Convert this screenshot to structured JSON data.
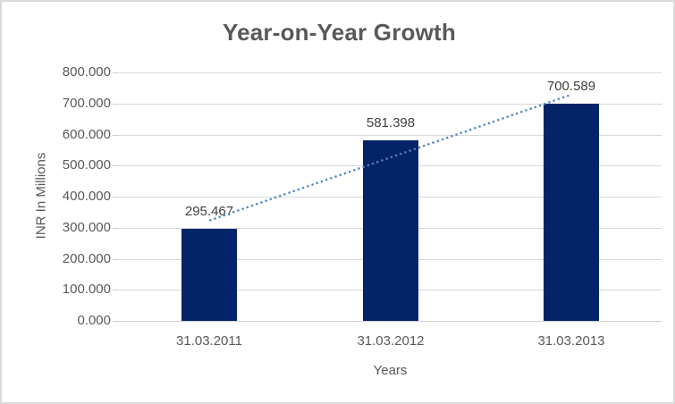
{
  "window": {
    "background": "#ffffff",
    "border_color": "#dadada"
  },
  "chart_data": {
    "type": "bar",
    "title": "Year-on-Year Growth",
    "xlabel": "Years",
    "ylabel": "INR In Millions",
    "categories": [
      "31.03.2011",
      "31.03.2012",
      "31.03.2013"
    ],
    "values": [
      295.467,
      581.398,
      700.589
    ],
    "data_labels": [
      "295.467",
      "581.398",
      "700.589"
    ],
    "ylim": [
      0,
      800
    ],
    "ytick_step": 100,
    "ytick_labels": [
      "0.000",
      "100.000",
      "200.000",
      "300.000",
      "400.000",
      "500.000",
      "600.000",
      "700.000",
      "800.000"
    ],
    "grid": true,
    "legend": "none",
    "trendline": {
      "type": "linear",
      "style": "dotted",
      "color": "#4e85c4"
    },
    "colors": {
      "bar": "#032469",
      "grid": "#d9d9d9",
      "axis": "#cfcfcf",
      "text": "#595959",
      "data_label": "#404040"
    }
  }
}
